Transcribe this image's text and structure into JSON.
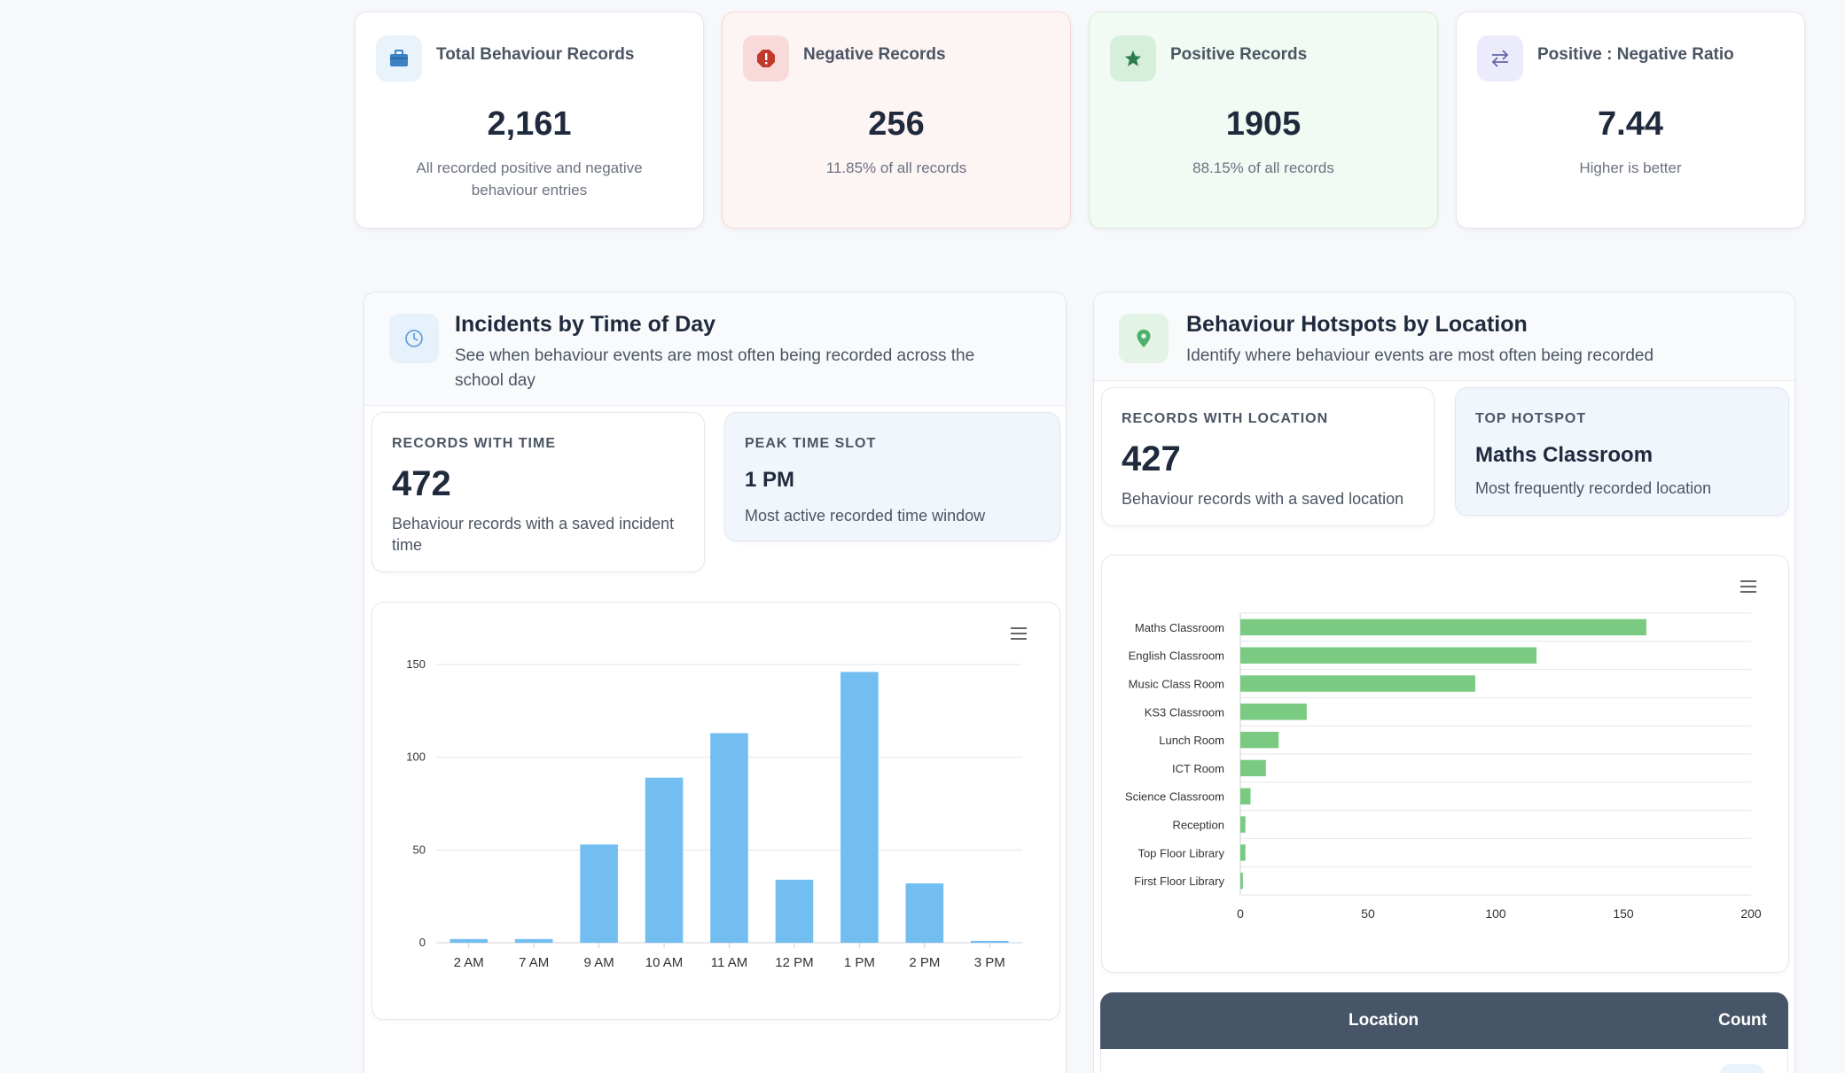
{
  "stats": [
    {
      "label": "Total Behaviour Records",
      "value": "2,161",
      "sub": "All recorded positive and negative behaviour entries",
      "icon": "briefcase-icon",
      "color": "#3b82f6"
    },
    {
      "label": "Negative Records",
      "value": "256",
      "sub": "11.85% of all records",
      "icon": "alert-icon",
      "color": "#c0392b"
    },
    {
      "label": "Positive Records",
      "value": "1905",
      "sub": "88.15% of all records",
      "icon": "star-icon",
      "color": "#2e7d4f"
    },
    {
      "label": "Positive : Negative Ratio",
      "value": "7.44",
      "sub": "Higher is better",
      "icon": "swap-arrows-icon",
      "color": "#6366f1"
    }
  ],
  "time_panel": {
    "title": "Incidents by Time of Day",
    "description": "See when behaviour events are most often being recorded across the school day",
    "icon": "clock-icon",
    "records_label": "RECORDS WITH TIME",
    "records_value": "472",
    "records_sub": "Behaviour records with a saved incident time",
    "peak_label": "PEAK TIME SLOT",
    "peak_value": "1 PM",
    "peak_sub": "Most active recorded time window"
  },
  "location_panel": {
    "title": "Behaviour Hotspots by Location",
    "description": "Identify where behaviour events are most often being recorded",
    "icon": "map-pin-icon",
    "records_label": "RECORDS WITH LOCATION",
    "records_value": "427",
    "records_sub": "Behaviour records with a saved location",
    "top_label": "TOP HOTSPOT",
    "top_value": "Maths Classroom",
    "top_sub": "Most frequently recorded location"
  },
  "table": {
    "col_location": "Location",
    "col_count": "Count"
  },
  "chart_data": [
    {
      "type": "bar",
      "categories": [
        "2 AM",
        "7 AM",
        "9 AM",
        "10 AM",
        "11 AM",
        "12 PM",
        "1 PM",
        "2 PM",
        "3 PM"
      ],
      "values": [
        2,
        2,
        53,
        89,
        113,
        34,
        146,
        32,
        1
      ],
      "yticks": [
        0,
        50,
        100,
        150
      ],
      "ylim": [
        0,
        150
      ],
      "color": "#72bef0",
      "grid": true
    },
    {
      "type": "bar",
      "orientation": "horizontal",
      "categories": [
        "Maths Classroom",
        "English Classroom",
        "Music Class Room",
        "KS3 Classroom",
        "Lunch Room",
        "ICT Room",
        "Science Classroom",
        "Reception",
        "Top Floor Library",
        "First Floor Library"
      ],
      "values": [
        159,
        116,
        92,
        26,
        15,
        10,
        4,
        2,
        2,
        1
      ],
      "xticks": [
        0,
        50,
        100,
        150,
        200
      ],
      "xlim": [
        0,
        200
      ],
      "color": "#7acb81",
      "grid": true
    }
  ]
}
